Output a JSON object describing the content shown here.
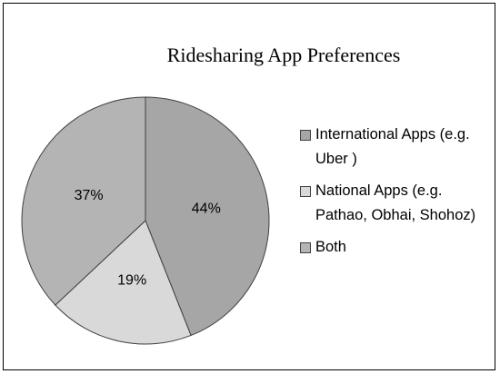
{
  "chart_data": {
    "type": "pie",
    "title": "Ridesharing  App Preferences",
    "categories": [
      "International Apps (e.g. Uber )",
      "National Apps (e.g. Pathao, Obhai, Shohoz)",
      "Both"
    ],
    "values": [
      44,
      19,
      37
    ],
    "value_labels": [
      "44%",
      "19%",
      "37%"
    ],
    "colors": [
      "#a6a6a6",
      "#d9d9d9",
      "#b4b4b4"
    ],
    "legend": "right"
  }
}
